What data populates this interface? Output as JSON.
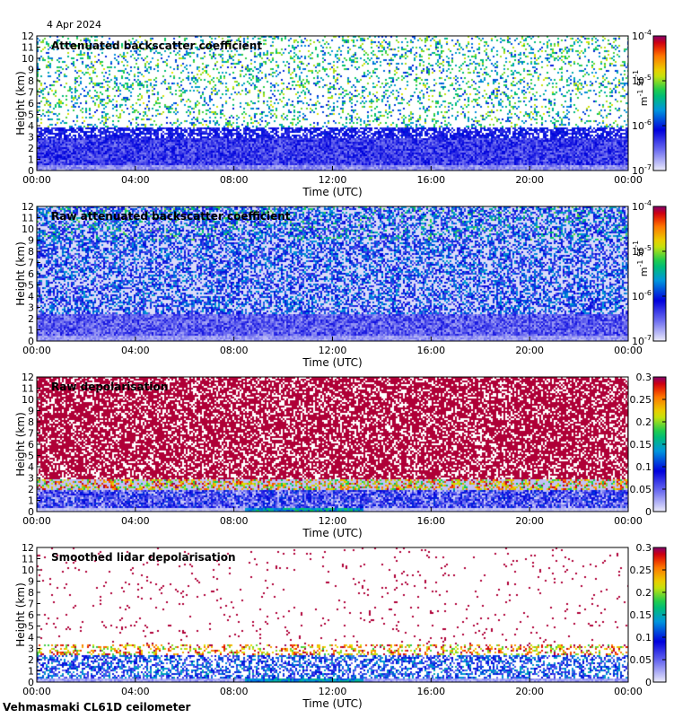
{
  "header": {
    "date": "4 Apr 2024"
  },
  "footer": {
    "site": "Vehmasmaki CL61D ceilometer"
  },
  "chart_data": [
    {
      "type": "heatmap",
      "title": "Attenuated backscatter coefficient",
      "xlabel": "Time (UTC)",
      "ylabel": "Height (km)",
      "xticks": [
        "00:00",
        "04:00",
        "08:00",
        "12:00",
        "16:00",
        "20:00",
        "00:00"
      ],
      "yticks": [
        "0",
        "1",
        "2",
        "3",
        "4",
        "5",
        "6",
        "7",
        "8",
        "9",
        "10",
        "11",
        "12"
      ],
      "ylim": [
        0,
        12
      ],
      "colorbar": {
        "scale": "log",
        "colormap": "rainbow",
        "label": "m-1 sr-1",
        "ticks": [
          {
            "base": "10",
            "exp": "-4",
            "value": 0.0001
          },
          {
            "base": "10",
            "exp": "-5",
            "value": 1e-05
          },
          {
            "base": "10",
            "exp": "-6",
            "value": 1e-06
          },
          {
            "base": "10",
            "exp": "-7",
            "value": 1e-07
          }
        ],
        "range": [
          1e-07,
          0.0001
        ]
      }
    },
    {
      "type": "heatmap",
      "title": "Raw attenuated backscatter coefficient",
      "xlabel": "Time (UTC)",
      "ylabel": "Height (km)",
      "xticks": [
        "00:00",
        "04:00",
        "08:00",
        "12:00",
        "16:00",
        "20:00",
        "00:00"
      ],
      "yticks": [
        "0",
        "1",
        "2",
        "3",
        "4",
        "5",
        "6",
        "7",
        "8",
        "9",
        "10",
        "11",
        "12"
      ],
      "ylim": [
        0,
        12
      ],
      "colorbar": {
        "scale": "log",
        "colormap": "rainbow",
        "label": "m-1 sr-1",
        "ticks": [
          {
            "base": "10",
            "exp": "-4",
            "value": 0.0001
          },
          {
            "base": "10",
            "exp": "-5",
            "value": 1e-05
          },
          {
            "base": "10",
            "exp": "-6",
            "value": 1e-06
          },
          {
            "base": "10",
            "exp": "-7",
            "value": 1e-07
          }
        ],
        "range": [
          1e-07,
          0.0001
        ]
      }
    },
    {
      "type": "heatmap",
      "title": "Raw depolarisation",
      "xlabel": "Time (UTC)",
      "ylabel": "Height (km)",
      "xticks": [
        "00:00",
        "04:00",
        "08:00",
        "12:00",
        "16:00",
        "20:00",
        "00:00"
      ],
      "yticks": [
        "0",
        "1",
        "2",
        "3",
        "4",
        "5",
        "6",
        "7",
        "8",
        "9",
        "10",
        "11",
        "12"
      ],
      "ylim": [
        0,
        12
      ],
      "colorbar": {
        "scale": "linear",
        "colormap": "rainbow",
        "label": "",
        "ticks": [
          {
            "label": "0.3",
            "value": 0.3
          },
          {
            "label": "0.25",
            "value": 0.25
          },
          {
            "label": "0.2",
            "value": 0.2
          },
          {
            "label": "0.15",
            "value": 0.15
          },
          {
            "label": "0.1",
            "value": 0.1
          },
          {
            "label": "0.05",
            "value": 0.05
          },
          {
            "label": "0",
            "value": 0
          }
        ],
        "range": [
          0,
          0.3
        ]
      }
    },
    {
      "type": "heatmap",
      "title": "Smoothed lidar depolarisation",
      "xlabel": "Time (UTC)",
      "ylabel": "Height (km)",
      "xticks": [
        "00:00",
        "04:00",
        "08:00",
        "12:00",
        "16:00",
        "20:00",
        "00:00"
      ],
      "yticks": [
        "0",
        "1",
        "2",
        "3",
        "4",
        "5",
        "6",
        "7",
        "8",
        "9",
        "10",
        "11",
        "12"
      ],
      "ylim": [
        0,
        12
      ],
      "colorbar": {
        "scale": "linear",
        "colormap": "rainbow",
        "label": "",
        "ticks": [
          {
            "label": "0.3",
            "value": 0.3
          },
          {
            "label": "0.25",
            "value": 0.25
          },
          {
            "label": "0.2",
            "value": 0.2
          },
          {
            "label": "0.15",
            "value": 0.15
          },
          {
            "label": "0.1",
            "value": 0.1
          },
          {
            "label": "0.05",
            "value": 0.05
          },
          {
            "label": "0",
            "value": 0
          }
        ],
        "range": [
          0,
          0.3
        ]
      }
    }
  ]
}
